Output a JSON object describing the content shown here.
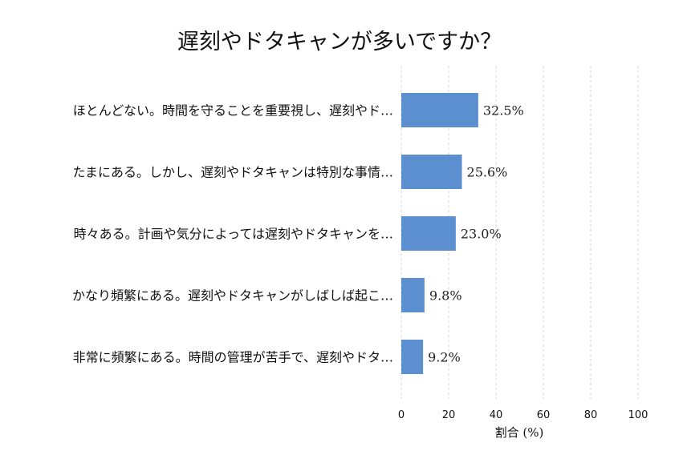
{
  "chart_data": {
    "type": "bar",
    "orientation": "horizontal",
    "title": "遅刻やドタキャンが多いですか？",
    "xlabel": "割合 (%)",
    "ylabel": "",
    "xlim": [
      0,
      100
    ],
    "xticks": [
      0,
      20,
      40,
      60,
      80,
      100
    ],
    "grid": true,
    "bar_color": "#5b8fd0",
    "categories": [
      "ほとんどない。時間を守ることを重要視し、遅刻やド…",
      "たまにある。しかし、遅刻やドタキャンは特別な事情…",
      "時々ある。計画や気分によっては遅刻やドタキャンを…",
      "かなり頻繁にある。遅刻やドタキャンがしばしば起こ…",
      "非常に頻繁にある。時間の管理が苦手で、遅刻やドタ…"
    ],
    "values": [
      32.5,
      25.6,
      23.0,
      9.8,
      9.2
    ],
    "value_labels": [
      "32.5%",
      "25.6%",
      "23.0%",
      "9.8%",
      "9.2%"
    ]
  }
}
